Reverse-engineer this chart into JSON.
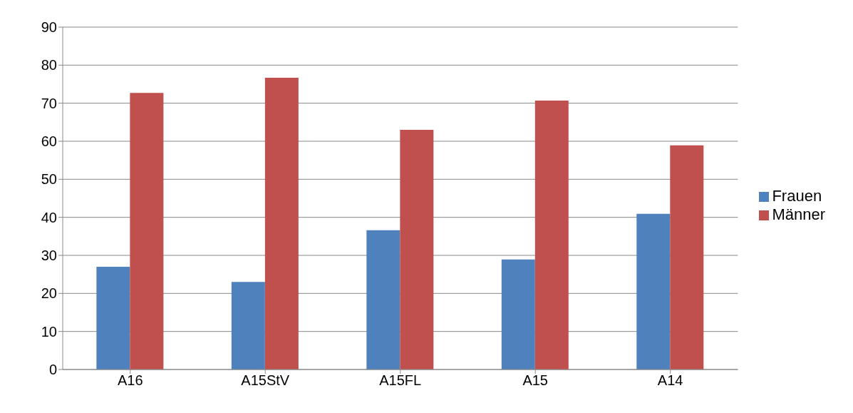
{
  "chart_data": {
    "type": "bar",
    "categories": [
      "A16",
      "A15StV",
      "A15FL",
      "A15",
      "A14"
    ],
    "series": [
      {
        "name": "Frauen",
        "color": "#4f81bd",
        "values": [
          27,
          23,
          36.6,
          28.9,
          40.9
        ]
      },
      {
        "name": "Männer",
        "color": "#c0504d",
        "values": [
          72.7,
          76.7,
          63,
          70.7,
          58.9
        ]
      }
    ],
    "ylim": [
      0,
      90
    ],
    "yticks": [
      0,
      10,
      20,
      30,
      40,
      50,
      60,
      70,
      80,
      90
    ],
    "grid": "y",
    "legend": "right"
  }
}
